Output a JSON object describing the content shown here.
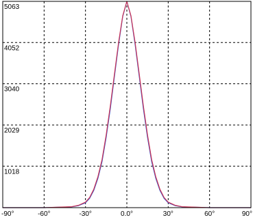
{
  "chart_data": {
    "type": "line",
    "title": "",
    "xlabel": "",
    "ylabel": "",
    "xlim": [
      -90,
      90
    ],
    "ylim": [
      0,
      5063
    ],
    "grid": true,
    "grid_style": "dashed",
    "x_ticks": [
      {
        "value": -90,
        "label": "-90°"
      },
      {
        "value": -60,
        "label": "-60°"
      },
      {
        "value": -30,
        "label": "-30°"
      },
      {
        "value": 0,
        "label": "0.0°"
      },
      {
        "value": 30,
        "label": "30°"
      },
      {
        "value": 60,
        "label": "60°"
      },
      {
        "value": 90,
        "label": "90°"
      }
    ],
    "y_ticks": [
      {
        "value": 1018,
        "label": "1018"
      },
      {
        "value": 2029,
        "label": "2029"
      },
      {
        "value": 3040,
        "label": "3040"
      },
      {
        "value": 4052,
        "label": "4052"
      },
      {
        "value": 5063,
        "label": "5063"
      }
    ],
    "series": [
      {
        "color": "#3355cc",
        "x": [
          -90,
          -60,
          -40,
          -35,
          -30,
          -27,
          -24,
          -21,
          -18,
          -15,
          -12,
          -9,
          -6,
          -3,
          0,
          3,
          6,
          9,
          12,
          15,
          18,
          21,
          24,
          27,
          30,
          35,
          40,
          60,
          90
        ],
        "y": [
          0,
          0,
          20,
          50,
          120,
          230,
          420,
          720,
          1130,
          1720,
          2430,
          3220,
          4000,
          4690,
          5063,
          4690,
          4000,
          3220,
          2430,
          1720,
          1130,
          720,
          420,
          230,
          120,
          50,
          20,
          0,
          0
        ]
      },
      {
        "color": "#cc3355",
        "x": [
          -90,
          -60,
          -40,
          -35,
          -30,
          -27,
          -24,
          -21,
          -18,
          -15,
          -12,
          -9,
          -6,
          -3,
          0,
          3,
          6,
          9,
          12,
          15,
          18,
          21,
          24,
          27,
          30,
          35,
          40,
          60,
          90
        ],
        "y": [
          0,
          0,
          24,
          58,
          135,
          250,
          450,
          760,
          1180,
          1780,
          2500,
          3280,
          4050,
          4710,
          5063,
          4710,
          4050,
          3280,
          2500,
          1780,
          1180,
          760,
          450,
          250,
          135,
          58,
          24,
          0,
          0
        ]
      }
    ]
  }
}
